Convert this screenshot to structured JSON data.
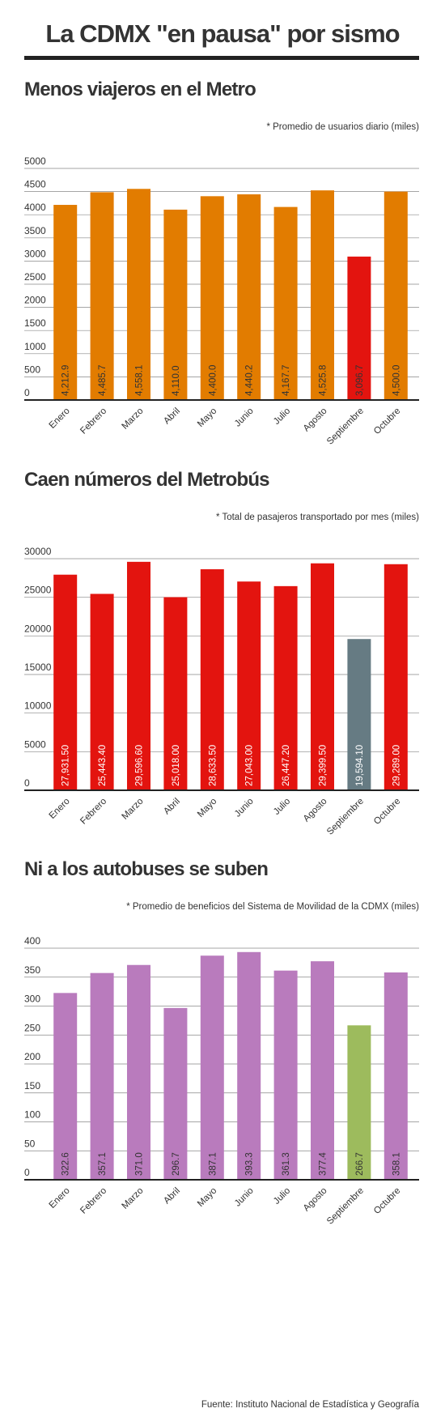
{
  "title": "La CDMX \"en pausa\" por sismo",
  "source": "Fuente: Instituto Nacional de Estadística y Geografía",
  "chart_data": [
    {
      "type": "bar",
      "title": "Menos viajeros en el Metro",
      "subtitle": "* Promedio de usuarios diario (miles)",
      "categories": [
        "Enero",
        "Febrero",
        "Marzo",
        "Abril",
        "Mayo",
        "Junio",
        "Julio",
        "Agosto",
        "Septiembre",
        "Octubre"
      ],
      "values": [
        4212.9,
        4485.7,
        4558.1,
        4110.0,
        4400.0,
        4440.2,
        4167.7,
        4525.8,
        3096.7,
        4500.0
      ],
      "value_labels": [
        "4,212.9",
        "4,485.7",
        "4,558.1",
        "4,110.0",
        "4,400.0",
        "4,440.2",
        "4,167.7",
        "4,525.8",
        "3,096.7",
        "4,500.0"
      ],
      "colors": [
        "#e27c00",
        "#e27c00",
        "#e27c00",
        "#e27c00",
        "#e27c00",
        "#e27c00",
        "#e27c00",
        "#e27c00",
        "#e3140f",
        "#e27c00"
      ],
      "ylim": [
        0,
        5000
      ],
      "yticks": [
        0,
        500,
        1000,
        1500,
        2000,
        2500,
        3000,
        3500,
        4000,
        4500,
        5000
      ],
      "grid": true
    },
    {
      "type": "bar",
      "title": "Caen números del Metrobús",
      "subtitle": "* Total de pasajeros transportado por mes (miles)",
      "categories": [
        "Enero",
        "Febrero",
        "Marzo",
        "Abril",
        "Mayo",
        "Junio",
        "Julio",
        "Agosto",
        "Septiembre",
        "Octubre"
      ],
      "values": [
        27931.5,
        25443.4,
        29596.6,
        25018.0,
        28633.5,
        27043.0,
        26447.2,
        29399.5,
        19594.1,
        29289.0
      ],
      "value_labels": [
        "27,931.50",
        "25,443.40",
        "29,596.60",
        "25,018.00",
        "28,633.50",
        "27,043.00",
        "26,447.20",
        "29,399.50",
        "19,594.10",
        "29,289.00"
      ],
      "colors": [
        "#e3140f",
        "#e3140f",
        "#e3140f",
        "#e3140f",
        "#e3140f",
        "#e3140f",
        "#e3140f",
        "#e3140f",
        "#667b83",
        "#e3140f"
      ],
      "ylim": [
        0,
        30000
      ],
      "yticks": [
        0,
        5000,
        10000,
        15000,
        20000,
        25000,
        30000
      ],
      "grid": true
    },
    {
      "type": "bar",
      "title": "Ni a los autobuses se suben",
      "subtitle": "* Promedio de beneficios del Sistema de Movilidad de la CDMX (miles)",
      "categories": [
        "Enero",
        "Febrero",
        "Marzo",
        "Abril",
        "Mayo",
        "Junio",
        "Julio",
        "Agosto",
        "Septiembre",
        "Octubre"
      ],
      "values": [
        322.6,
        357.1,
        371.0,
        296.7,
        387.1,
        393.3,
        361.3,
        377.4,
        266.7,
        358.1
      ],
      "value_labels": [
        "322.6",
        "357.1",
        "371.0",
        "296.7",
        "387.1",
        "393.3",
        "361.3",
        "377.4",
        "266.7",
        "358.1"
      ],
      "colors": [
        "#b97bbd",
        "#b97bbd",
        "#b97bbd",
        "#b97bbd",
        "#b97bbd",
        "#b97bbd",
        "#b97bbd",
        "#b97bbd",
        "#9dbb5d",
        "#b97bbd"
      ],
      "ylim": [
        0,
        400
      ],
      "yticks": [
        0,
        50,
        100,
        150,
        200,
        250,
        300,
        350,
        400
      ],
      "grid": true
    }
  ]
}
